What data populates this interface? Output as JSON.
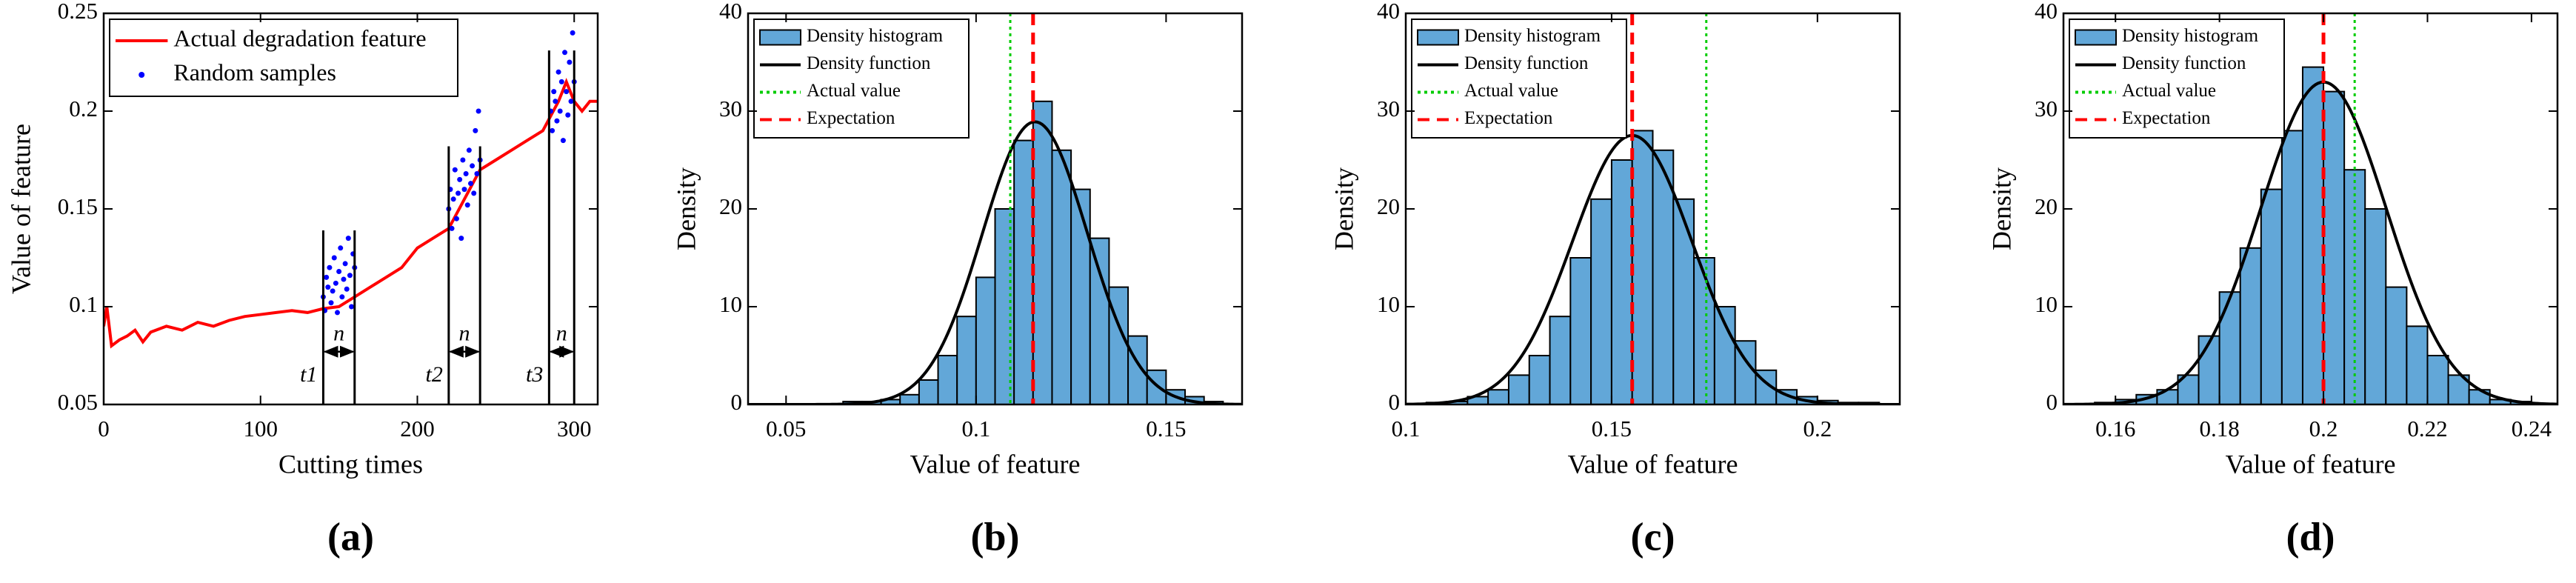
{
  "chart_data": [
    {
      "type": "line",
      "panel_label": "(a)",
      "xlabel": "Cutting times",
      "ylabel": "Value of feature",
      "xlim": [
        0,
        315
      ],
      "xticks": [
        0,
        100,
        200,
        300
      ],
      "ylim": [
        0.05,
        0.25
      ],
      "yticks": [
        0.05,
        0.1,
        0.15,
        0.2,
        0.25
      ],
      "legend": "upper left",
      "series": [
        {
          "name": "Actual degradation feature",
          "type": "line",
          "color": "#ff0000",
          "x": [
            0,
            2,
            5,
            10,
            15,
            20,
            25,
            30,
            40,
            50,
            60,
            70,
            80,
            90,
            100,
            110,
            120,
            130,
            140,
            150,
            160,
            170,
            180,
            190,
            200,
            210,
            220,
            230,
            240,
            250,
            260,
            270,
            280,
            290,
            295,
            300,
            305,
            310,
            315
          ],
          "values": [
            0.09,
            0.1,
            0.08,
            0.083,
            0.085,
            0.088,
            0.082,
            0.087,
            0.09,
            0.088,
            0.092,
            0.09,
            0.093,
            0.095,
            0.096,
            0.097,
            0.098,
            0.097,
            0.099,
            0.1,
            0.105,
            0.11,
            0.115,
            0.12,
            0.13,
            0.135,
            0.14,
            0.155,
            0.17,
            0.175,
            0.18,
            0.185,
            0.19,
            0.205,
            0.215,
            0.205,
            0.2,
            0.205,
            0.205
          ]
        },
        {
          "name": "Random samples",
          "type": "scatter",
          "color": "#0000ff",
          "x": [
            140,
            141,
            142,
            143,
            144,
            145,
            146,
            147,
            148,
            149,
            150,
            151,
            152,
            153,
            154,
            155,
            156,
            157,
            158,
            159,
            160,
            220,
            221,
            222,
            223,
            224,
            225,
            226,
            227,
            228,
            229,
            230,
            231,
            232,
            233,
            234,
            235,
            236,
            237,
            238,
            239,
            240,
            285,
            286,
            287,
            288,
            289,
            290,
            291,
            292,
            293,
            294,
            295,
            296,
            297,
            298,
            299,
            300
          ],
          "values": [
            0.105,
            0.098,
            0.115,
            0.11,
            0.12,
            0.102,
            0.108,
            0.125,
            0.112,
            0.097,
            0.118,
            0.13,
            0.105,
            0.114,
            0.122,
            0.109,
            0.135,
            0.116,
            0.1,
            0.127,
            0.12,
            0.15,
            0.16,
            0.14,
            0.155,
            0.17,
            0.145,
            0.158,
            0.165,
            0.135,
            0.175,
            0.16,
            0.168,
            0.152,
            0.18,
            0.163,
            0.172,
            0.158,
            0.19,
            0.168,
            0.2,
            0.175,
            0.2,
            0.19,
            0.21,
            0.205,
            0.195,
            0.22,
            0.2,
            0.215,
            0.185,
            0.23,
            0.21,
            0.198,
            0.225,
            0.205,
            0.24,
            0.215
          ]
        }
      ],
      "intervals": [
        {
          "label": "t1",
          "span_label": "n",
          "start": 140,
          "end": 160,
          "top": 0.139
        },
        {
          "label": "t2",
          "span_label": "n",
          "start": 220,
          "end": 240,
          "top": 0.182
        },
        {
          "label": "t3",
          "span_label": "n",
          "start": 284,
          "end": 300,
          "top": 0.231
        }
      ]
    },
    {
      "type": "histogram",
      "panel_label": "(b)",
      "xlabel": "Value of feature",
      "ylabel": "Density",
      "xlim": [
        0.04,
        0.17
      ],
      "xticks": [
        0.05,
        0.1,
        0.15
      ],
      "ylim": [
        0,
        40
      ],
      "yticks": [
        0,
        10,
        20,
        30,
        40
      ],
      "legend": "upper left",
      "histogram": {
        "name": "Density histogram",
        "color": "#62a7d8",
        "bins": [
          0.065,
          0.07,
          0.075,
          0.08,
          0.085,
          0.09,
          0.095,
          0.1,
          0.105,
          0.11,
          0.115,
          0.12,
          0.125,
          0.13,
          0.135,
          0.14,
          0.145,
          0.15,
          0.155,
          0.16,
          0.165
        ],
        "counts": [
          0.3,
          0.3,
          0.5,
          1,
          2.5,
          5,
          9,
          13,
          20,
          27,
          31,
          26,
          22,
          17,
          12,
          7,
          3.5,
          1.5,
          0.8,
          0.3
        ]
      },
      "density_function": {
        "name": "Density function",
        "color": "#000000",
        "mean": 0.1155,
        "std": 0.0138
      },
      "lines": [
        {
          "name": "Actual value",
          "color": "#00cc00",
          "style": "dotted",
          "x": 0.109
        },
        {
          "name": "Expectation",
          "color": "#ff0000",
          "style": "dashed",
          "x": 0.115
        }
      ]
    },
    {
      "type": "histogram",
      "panel_label": "(c)",
      "xlabel": "Value of feature",
      "ylabel": "Density",
      "xlim": [
        0.1,
        0.22
      ],
      "xticks": [
        0.1,
        0.15,
        0.2
      ],
      "ylim": [
        0,
        40
      ],
      "yticks": [
        0,
        10,
        20,
        30,
        40
      ],
      "legend": "upper left",
      "histogram": {
        "name": "Density histogram",
        "color": "#62a7d8",
        "bins": [
          0.105,
          0.11,
          0.115,
          0.12,
          0.125,
          0.13,
          0.135,
          0.14,
          0.145,
          0.15,
          0.155,
          0.16,
          0.165,
          0.17,
          0.175,
          0.18,
          0.185,
          0.19,
          0.195,
          0.2,
          0.205,
          0.21,
          0.215
        ],
        "counts": [
          0.2,
          0.3,
          0.8,
          1.5,
          3,
          5,
          9,
          15,
          21,
          25,
          28,
          26,
          21,
          15,
          10,
          6.5,
          3.5,
          1.5,
          0.8,
          0.4,
          0.2,
          0.2
        ]
      },
      "density_function": {
        "name": "Density function",
        "color": "#000000",
        "mean": 0.155,
        "std": 0.0145
      },
      "lines": [
        {
          "name": "Actual value",
          "color": "#00cc00",
          "style": "dotted",
          "x": 0.173
        },
        {
          "name": "Expectation",
          "color": "#ff0000",
          "style": "dashed",
          "x": 0.155
        }
      ]
    },
    {
      "type": "histogram",
      "panel_label": "(d)",
      "xlabel": "Value of feature",
      "ylabel": "Density",
      "xlim": [
        0.15,
        0.245
      ],
      "xticks": [
        0.16,
        0.18,
        0.2,
        0.22,
        0.24
      ],
      "ylim": [
        0,
        40
      ],
      "yticks": [
        0,
        10,
        20,
        30,
        40
      ],
      "legend": "upper left",
      "histogram": {
        "name": "Density histogram",
        "color": "#62a7d8",
        "bins": [
          0.156,
          0.16,
          0.164,
          0.168,
          0.172,
          0.176,
          0.18,
          0.184,
          0.188,
          0.192,
          0.196,
          0.2,
          0.204,
          0.208,
          0.212,
          0.216,
          0.22,
          0.224,
          0.228,
          0.232,
          0.236,
          0.24
        ],
        "counts": [
          0.2,
          0.5,
          1,
          1.5,
          3,
          7,
          11.5,
          16,
          22,
          28,
          34.5,
          32,
          24,
          20,
          12,
          8,
          5,
          3,
          1.5,
          0.5,
          0.3
        ]
      },
      "density_function": {
        "name": "Density function",
        "color": "#000000",
        "mean": 0.2,
        "std": 0.0121
      },
      "lines": [
        {
          "name": "Actual value",
          "color": "#00cc00",
          "style": "dotted",
          "x": 0.206
        },
        {
          "name": "Expectation",
          "color": "#ff0000",
          "style": "dashed",
          "x": 0.2
        }
      ]
    }
  ]
}
